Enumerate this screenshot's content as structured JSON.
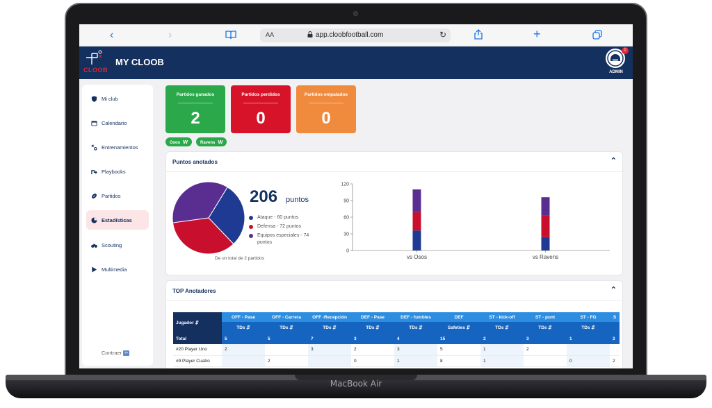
{
  "device": {
    "label": "MacBook Air"
  },
  "browser": {
    "reader_label": "AA",
    "url": "app.cloobfootball.com"
  },
  "header": {
    "logo_text": "CLOOB",
    "title": "MY CLOOB",
    "user_label": "ADMIN",
    "notification_count": "0"
  },
  "sidebar": {
    "items": [
      {
        "label": "Mi club",
        "icon": "shield-icon"
      },
      {
        "label": "Calendario",
        "icon": "calendar-icon"
      },
      {
        "label": "Entrenamientos",
        "icon": "tactics-icon"
      },
      {
        "label": "Playbooks",
        "icon": "playbook-icon"
      },
      {
        "label": "Partidos",
        "icon": "football-icon"
      },
      {
        "label": "Estadísticas",
        "icon": "pie-chart-icon",
        "active": true
      },
      {
        "label": "Scouting",
        "icon": "binoculars-icon"
      },
      {
        "label": "Multimedia",
        "icon": "play-icon"
      }
    ],
    "collapse_label": "Contraer"
  },
  "summary": {
    "won": {
      "label": "Partidos ganados",
      "value": "2",
      "color": "#2aa84a"
    },
    "lost": {
      "label": "Partidos perdidos",
      "value": "0",
      "color": "#d7132a"
    },
    "tied": {
      "label": "Partidos empatados",
      "value": "0",
      "color": "#f08a3c"
    },
    "results": [
      {
        "team": "Osos",
        "result": "W"
      },
      {
        "team": "Ravens",
        "result": "W"
      }
    ]
  },
  "points": {
    "title": "Puntos anotados",
    "total": "206",
    "unit": "puntos",
    "caption": "De un total de 2 partidos",
    "legend": [
      {
        "label": "Ataque - 60 puntos",
        "color": "#1f3a93"
      },
      {
        "label": "Defensa - 72 puntos",
        "color": "#c8102e"
      },
      {
        "label": "Equipos especiales - 74 puntos",
        "color": "#5a2d91"
      }
    ]
  },
  "chart_data": [
    {
      "type": "pie",
      "categories": [
        "Ataque",
        "Defensa",
        "Equipos especiales"
      ],
      "values": [
        60,
        72,
        74
      ],
      "colors": [
        "#1f3a93",
        "#c8102e",
        "#5a2d91"
      ]
    },
    {
      "type": "bar",
      "stacked": true,
      "categories": [
        "vs Osos",
        "vs Ravens"
      ],
      "series": [
        {
          "values": [
            36,
            24
          ],
          "color": "#1f3a93"
        },
        {
          "values": [
            33,
            39
          ],
          "color": "#c8102e"
        },
        {
          "values": [
            41,
            33
          ],
          "color": "#5a2d91"
        }
      ],
      "yticks": [
        0,
        30,
        60,
        90,
        120
      ],
      "ylim": [
        0,
        120
      ]
    }
  ],
  "top_scorers": {
    "title": "TOP Anotadores",
    "player_header": "Jugador ⇵",
    "groups": [
      "OFF - Pase",
      "OFF - Carrera",
      "OFF -Recepción",
      "DEF - Pase",
      "DEF - fumbles",
      "DEF",
      "ST - kick-off",
      "ST - punt",
      "ST - FG",
      "S"
    ],
    "subheaders": [
      "TDs ⇵",
      "TDs ⇵",
      "TDs ⇵",
      "TDs ⇵",
      "TDs ⇵",
      "Safeties ⇵",
      "TDs ⇵",
      "TDs ⇵",
      "TDs ⇵",
      ""
    ],
    "total_row": [
      "Total",
      "5",
      "5",
      "7",
      "3",
      "4",
      "15",
      "2",
      "3",
      "1",
      "2"
    ],
    "rows": [
      [
        "#20 Player Uno",
        "2",
        "",
        "3",
        "2",
        "3",
        "5",
        "1",
        "2",
        "",
        ""
      ],
      [
        "#9 Player Cuatro",
        "",
        "2",
        "",
        "0",
        "1",
        "8",
        "1",
        "",
        "0",
        "2"
      ]
    ]
  }
}
